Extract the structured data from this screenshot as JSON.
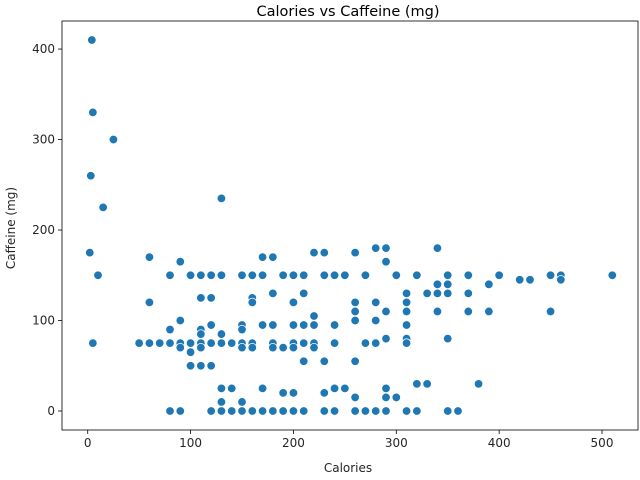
{
  "chart_data": {
    "type": "scatter",
    "title": "Calories vs Caffeine (mg)",
    "xlabel": "Calories",
    "ylabel": "Caffeine (mg)",
    "xlim": [
      -25,
      535
    ],
    "ylim": [
      -21,
      431
    ],
    "xticks": [
      0,
      100,
      200,
      300,
      400,
      500
    ],
    "yticks": [
      0,
      100,
      200,
      300,
      400
    ],
    "grid": false,
    "legend": "none",
    "marker_color": "#1f77b4",
    "points": [
      [
        4,
        410
      ],
      [
        5,
        330
      ],
      [
        25,
        300
      ],
      [
        3,
        260
      ],
      [
        15,
        225
      ],
      [
        130,
        235
      ],
      [
        2,
        175
      ],
      [
        10,
        150
      ],
      [
        5,
        75
      ],
      [
        60,
        170
      ],
      [
        90,
        165
      ],
      [
        60,
        120
      ],
      [
        80,
        150
      ],
      [
        100,
        150
      ],
      [
        110,
        150
      ],
      [
        120,
        150
      ],
      [
        130,
        150
      ],
      [
        110,
        125
      ],
      [
        120,
        125
      ],
      [
        90,
        100
      ],
      [
        110,
        90
      ],
      [
        120,
        95
      ],
      [
        130,
        85
      ],
      [
        80,
        90
      ],
      [
        110,
        85
      ],
      [
        50,
        75
      ],
      [
        60,
        75
      ],
      [
        70,
        75
      ],
      [
        80,
        75
      ],
      [
        90,
        75
      ],
      [
        100,
        75
      ],
      [
        110,
        75
      ],
      [
        120,
        75
      ],
      [
        130,
        75
      ],
      [
        140,
        75
      ],
      [
        90,
        70
      ],
      [
        100,
        65
      ],
      [
        110,
        70
      ],
      [
        100,
        50
      ],
      [
        110,
        50
      ],
      [
        120,
        50
      ],
      [
        130,
        25
      ],
      [
        140,
        25
      ],
      [
        130,
        10
      ],
      [
        150,
        10
      ],
      [
        80,
        0
      ],
      [
        90,
        0
      ],
      [
        120,
        0
      ],
      [
        130,
        0
      ],
      [
        140,
        0
      ],
      [
        150,
        0
      ],
      [
        160,
        0
      ],
      [
        170,
        0
      ],
      [
        180,
        0
      ],
      [
        190,
        0
      ],
      [
        200,
        0
      ],
      [
        210,
        0
      ],
      [
        230,
        0
      ],
      [
        240,
        0
      ],
      [
        260,
        0
      ],
      [
        270,
        0
      ],
      [
        280,
        0
      ],
      [
        290,
        0
      ],
      [
        310,
        0
      ],
      [
        320,
        0
      ],
      [
        350,
        0
      ],
      [
        360,
        0
      ],
      [
        150,
        150
      ],
      [
        160,
        150
      ],
      [
        170,
        150
      ],
      [
        190,
        150
      ],
      [
        200,
        150
      ],
      [
        210,
        150
      ],
      [
        230,
        150
      ],
      [
        240,
        150
      ],
      [
        250,
        150
      ],
      [
        170,
        170
      ],
      [
        180,
        170
      ],
      [
        220,
        175
      ],
      [
        230,
        175
      ],
      [
        260,
        175
      ],
      [
        280,
        180
      ],
      [
        290,
        180
      ],
      [
        290,
        165
      ],
      [
        160,
        125
      ],
      [
        160,
        120
      ],
      [
        180,
        130
      ],
      [
        200,
        120
      ],
      [
        210,
        130
      ],
      [
        150,
        95
      ],
      [
        150,
        90
      ],
      [
        170,
        95
      ],
      [
        180,
        95
      ],
      [
        200,
        95
      ],
      [
        210,
        95
      ],
      [
        220,
        95
      ],
      [
        220,
        105
      ],
      [
        240,
        95
      ],
      [
        150,
        75
      ],
      [
        160,
        75
      ],
      [
        150,
        70
      ],
      [
        160,
        70
      ],
      [
        180,
        75
      ],
      [
        180,
        70
      ],
      [
        190,
        70
      ],
      [
        200,
        75
      ],
      [
        200,
        70
      ],
      [
        210,
        75
      ],
      [
        220,
        75
      ],
      [
        220,
        70
      ],
      [
        240,
        75
      ],
      [
        210,
        55
      ],
      [
        230,
        55
      ],
      [
        260,
        55
      ],
      [
        270,
        75
      ],
      [
        280,
        75
      ],
      [
        290,
        80
      ],
      [
        280,
        100
      ],
      [
        260,
        100
      ],
      [
        260,
        110
      ],
      [
        260,
        120
      ],
      [
        280,
        120
      ],
      [
        290,
        110
      ],
      [
        170,
        25
      ],
      [
        190,
        20
      ],
      [
        200,
        20
      ],
      [
        230,
        20
      ],
      [
        240,
        25
      ],
      [
        250,
        25
      ],
      [
        260,
        15
      ],
      [
        290,
        25
      ],
      [
        290,
        15
      ],
      [
        300,
        15
      ],
      [
        270,
        150
      ],
      [
        300,
        150
      ],
      [
        320,
        150
      ],
      [
        310,
        130
      ],
      [
        310,
        120
      ],
      [
        310,
        110
      ],
      [
        310,
        95
      ],
      [
        310,
        80
      ],
      [
        310,
        75
      ],
      [
        330,
        130
      ],
      [
        340,
        140
      ],
      [
        340,
        130
      ],
      [
        350,
        140
      ],
      [
        350,
        130
      ],
      [
        340,
        180
      ],
      [
        350,
        150
      ],
      [
        340,
        110
      ],
      [
        350,
        80
      ],
      [
        320,
        30
      ],
      [
        330,
        30
      ],
      [
        380,
        30
      ],
      [
        370,
        150
      ],
      [
        370,
        130
      ],
      [
        370,
        110
      ],
      [
        390,
        140
      ],
      [
        390,
        110
      ],
      [
        400,
        150
      ],
      [
        420,
        145
      ],
      [
        430,
        145
      ],
      [
        450,
        150
      ],
      [
        450,
        110
      ],
      [
        460,
        150
      ],
      [
        460,
        145
      ],
      [
        510,
        150
      ]
    ]
  }
}
